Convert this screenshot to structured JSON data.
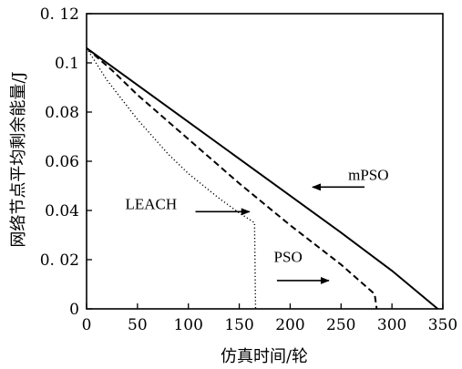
{
  "chart_data": {
    "type": "line",
    "title": "",
    "xlabel": "仿真时间/轮",
    "ylabel": "网络节点平均剩余能量/J",
    "xlim": [
      0,
      350
    ],
    "ylim": [
      0,
      0.12
    ],
    "x_ticks": [
      0,
      50,
      100,
      150,
      200,
      250,
      300,
      350
    ],
    "x_tick_labels": [
      "0",
      "50",
      "100",
      "150",
      "200",
      "250",
      "300",
      "350"
    ],
    "y_ticks": [
      0,
      0.02,
      0.04,
      0.06,
      0.08,
      0.1,
      0.12
    ],
    "y_tick_labels": [
      "0",
      "0. 02",
      "0.04",
      "0.06",
      "0.08",
      "0.1",
      "0. 12"
    ],
    "grid": false,
    "series": [
      {
        "name": "mPSO",
        "style": "solid",
        "color": "#000000",
        "points": [
          [
            0,
            0.106
          ],
          [
            50,
            0.091
          ],
          [
            100,
            0.076
          ],
          [
            150,
            0.061
          ],
          [
            200,
            0.046
          ],
          [
            250,
            0.031
          ],
          [
            300,
            0.0155
          ],
          [
            345,
            0
          ]
        ]
      },
      {
        "name": "PSO",
        "style": "dashed",
        "color": "#000000",
        "points": [
          [
            0,
            0.106
          ],
          [
            25,
            0.097
          ],
          [
            50,
            0.087
          ],
          [
            100,
            0.069
          ],
          [
            150,
            0.051
          ],
          [
            200,
            0.034
          ],
          [
            250,
            0.018
          ],
          [
            283,
            0.006
          ],
          [
            285,
            0
          ]
        ]
      },
      {
        "name": "LEACH",
        "style": "dotted",
        "color": "#000000",
        "points": [
          [
            0,
            0.106
          ],
          [
            20,
            0.093
          ],
          [
            50,
            0.077
          ],
          [
            80,
            0.063
          ],
          [
            100,
            0.055
          ],
          [
            130,
            0.045
          ],
          [
            150,
            0.039
          ],
          [
            165,
            0.035
          ],
          [
            166,
            0
          ]
        ]
      }
    ],
    "annotations": [
      {
        "text": "mPSO",
        "series": "mPSO",
        "label_at": [
          257,
          0.0525
        ],
        "arrow_from": [
          273,
          0.0495
        ],
        "arrow_to": [
          222,
          0.0495
        ]
      },
      {
        "text": "PSO",
        "series": "PSO",
        "label_at": [
          184,
          0.019
        ],
        "arrow_from": [
          187,
          0.0115
        ],
        "arrow_to": [
          238,
          0.0115
        ]
      },
      {
        "text": "LEACH",
        "series": "LEACH",
        "label_at": [
          38,
          0.0405
        ],
        "arrow_from": [
          107,
          0.0395
        ],
        "arrow_to": [
          160,
          0.0395
        ]
      }
    ]
  }
}
